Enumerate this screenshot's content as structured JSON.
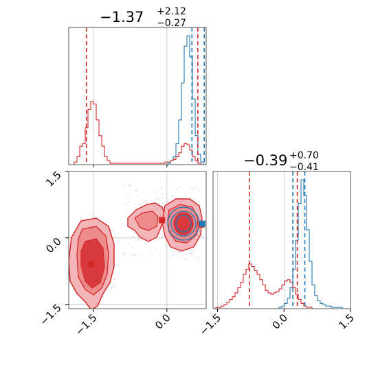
{
  "chart_data": {
    "type": "corner",
    "colors": {
      "red": "#d62728",
      "blue": "#1f77b4",
      "grid": "#b0b0b0"
    },
    "series": [
      {
        "color": "red"
      },
      {
        "color": "blue"
      }
    ],
    "titles": {
      "p1": {
        "main": "−1.37",
        "sup": "+2.12",
        "sub": "−0.27"
      },
      "p2": {
        "main": "−0.39",
        "sup": "+0.70",
        "sub": "−0.41"
      }
    },
    "axes": {
      "p1": {
        "range": [
          -2.0,
          0.8
        ],
        "ticks": [
          -1.5,
          0.0
        ],
        "tick_labels": [
          "−1.5",
          "0.0"
        ]
      },
      "p2": {
        "range": [
          -1.6,
          1.5
        ],
        "ticks": [
          -1.5,
          0.0,
          1.5
        ],
        "tick_labels": [
          "−1.5",
          "0.0",
          "1.5"
        ]
      }
    },
    "reference_lines": {
      "red": {
        "p1": [
          -1.64,
          0.63
        ],
        "p2": [
          -0.78,
          0.3
        ]
      },
      "blue": {
        "p1": [
          0.51,
          0.76
        ],
        "p2": [
          0.2,
          0.47
        ]
      }
    },
    "hist_p1": {
      "bin_start": -2.0,
      "bin_width": 0.056,
      "red": [
        0,
        0,
        2,
        6,
        14,
        16,
        28,
        42,
        48,
        46,
        34,
        22,
        14,
        6,
        3,
        1,
        1,
        1,
        1,
        1,
        1,
        1,
        1,
        1,
        1,
        1,
        1,
        1,
        1,
        1,
        1,
        1,
        1,
        1,
        1,
        2,
        2,
        3,
        4,
        6,
        9,
        14,
        16,
        15,
        11,
        6,
        3,
        1,
        0,
        0
      ],
      "blue": [
        0,
        0,
        0,
        0,
        0,
        0,
        0,
        0,
        0,
        0,
        0,
        0,
        0,
        0,
        0,
        0,
        0,
        0,
        0,
        0,
        0,
        0,
        0,
        0,
        0,
        0,
        0,
        0,
        0,
        0,
        0,
        0,
        0,
        0,
        0,
        0,
        1,
        3,
        6,
        16,
        34,
        62,
        90,
        98,
        82,
        50,
        22,
        8,
        2,
        0
      ]
    },
    "hist_p2": {
      "bin_start": -1.6,
      "bin_width": 0.062,
      "red": [
        0,
        1,
        1,
        2,
        3,
        5,
        7,
        9,
        12,
        16,
        20,
        26,
        30,
        34,
        32,
        29,
        26,
        22,
        18,
        14,
        12,
        11,
        12,
        13,
        15,
        18,
        21,
        22,
        20,
        16,
        11,
        7,
        4,
        2,
        1,
        1,
        0,
        0,
        0,
        0,
        0,
        0,
        0,
        0,
        0,
        0,
        0,
        0,
        0,
        0
      ],
      "blue": [
        0,
        0,
        0,
        0,
        0,
        0,
        0,
        0,
        0,
        0,
        0,
        0,
        0,
        0,
        0,
        0,
        0,
        0,
        0,
        0,
        0,
        0,
        0,
        0,
        1,
        2,
        4,
        8,
        16,
        30,
        52,
        80,
        98,
        86,
        60,
        36,
        18,
        10,
        6,
        4,
        3,
        2,
        2,
        1,
        1,
        1,
        1,
        0,
        0,
        0
      ]
    },
    "modes_2d": {
      "red_high": [
        0.7,
        0.3
      ],
      "red_mid": [
        -0.1,
        0.4
      ],
      "red_low": [
        -1.55,
        -0.6
      ],
      "blue": [
        0.72,
        0.32
      ]
    }
  }
}
